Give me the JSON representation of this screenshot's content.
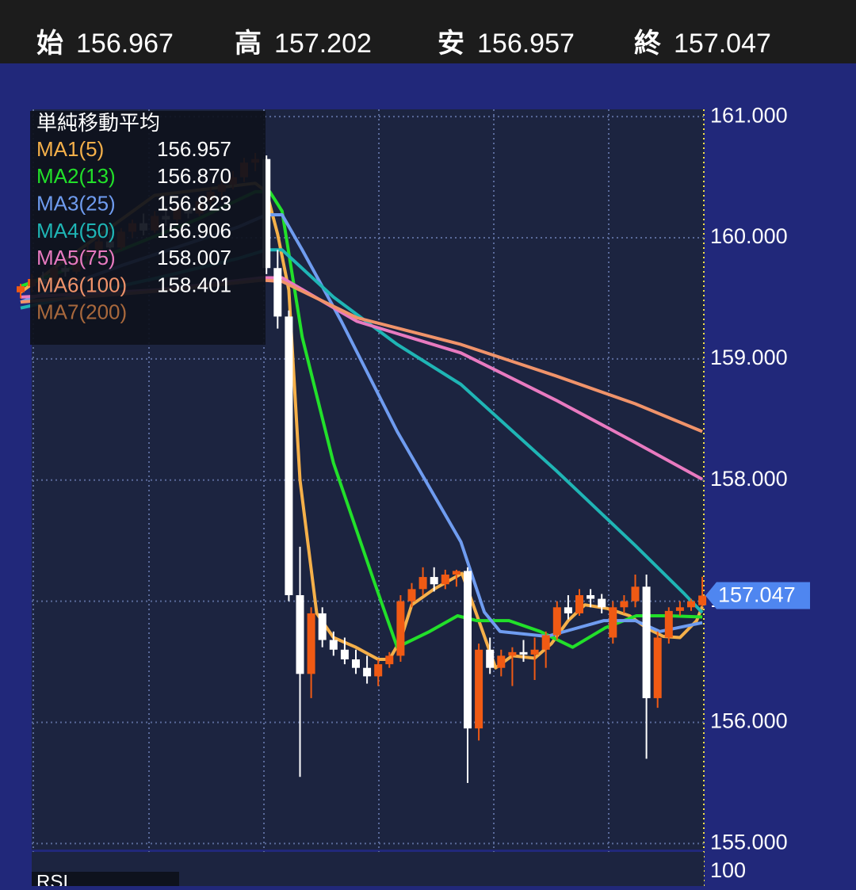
{
  "header": {
    "items": [
      {
        "label": "始",
        "value": "156.967"
      },
      {
        "label": "高",
        "value": "157.202"
      },
      {
        "label": "安",
        "value": "156.957"
      },
      {
        "label": "終",
        "value": "157.047"
      }
    ]
  },
  "chart_data": {
    "type": "candlestick",
    "legend_title": "単純移動平均",
    "ylim": [
      154.95,
      161.06
    ],
    "yticks": [
      {
        "value": 155,
        "label": "155.000"
      },
      {
        "value": 156,
        "label": "156.000"
      },
      {
        "value": 157,
        "label": "157.000"
      },
      {
        "value": 158,
        "label": "158.000"
      },
      {
        "value": 159,
        "label": "159.000"
      },
      {
        "value": 160,
        "label": "160.000"
      },
      {
        "value": 161,
        "label": "161.000"
      }
    ],
    "grid": true,
    "up_color": "#f05a14",
    "down_color": "#ffffff",
    "current_price": {
      "value": 157.047,
      "label": "157.047"
    },
    "open": [
      159.55,
      159.6,
      159.66,
      159.62,
      159.75,
      159.72,
      159.85,
      159.9,
      159.97,
      159.92,
      160.05,
      160.12,
      160.06,
      160.18,
      160.15,
      160.25,
      160.2,
      160.3,
      160.38,
      160.44,
      160.5,
      160.62,
      160.65,
      159.75,
      159.35,
      157.05,
      156.4,
      156.9,
      156.68,
      156.6,
      156.52,
      156.45,
      156.38,
      156.48,
      156.55,
      157.0,
      157.1,
      157.2,
      157.14,
      157.22,
      157.25,
      155.95,
      156.6,
      156.45,
      156.55,
      156.58,
      156.56,
      156.6,
      156.72,
      156.95,
      156.9,
      157.05,
      157.02,
      156.7,
      156.95,
      157.0,
      157.12,
      156.2,
      156.7,
      156.92,
      156.95,
      156.967
    ],
    "high": [
      159.62,
      159.7,
      159.72,
      159.78,
      159.82,
      159.88,
      159.95,
      160.02,
      160.05,
      160.08,
      160.15,
      160.2,
      160.22,
      160.26,
      160.3,
      160.32,
      160.35,
      160.42,
      160.48,
      160.55,
      160.66,
      160.7,
      160.68,
      159.9,
      159.4,
      157.45,
      156.95,
      156.95,
      156.75,
      156.7,
      156.6,
      156.55,
      156.52,
      156.58,
      157.05,
      157.15,
      157.28,
      157.28,
      157.26,
      157.26,
      157.28,
      156.65,
      156.7,
      156.6,
      156.62,
      156.68,
      156.7,
      156.75,
      157.0,
      157.05,
      157.1,
      157.1,
      157.06,
      157.0,
      157.05,
      157.22,
      157.22,
      156.75,
      156.95,
      157.0,
      157.02,
      157.202
    ],
    "low": [
      159.5,
      159.55,
      159.58,
      159.6,
      159.68,
      159.7,
      159.78,
      159.85,
      159.88,
      159.9,
      160.0,
      160.02,
      160.04,
      160.1,
      160.12,
      160.16,
      160.18,
      160.26,
      160.3,
      160.4,
      160.46,
      160.55,
      159.7,
      159.25,
      157.0,
      155.55,
      156.2,
      156.62,
      156.55,
      156.48,
      156.4,
      156.32,
      156.3,
      156.45,
      156.5,
      156.95,
      157.05,
      157.08,
      157.1,
      157.12,
      155.5,
      155.85,
      156.4,
      156.38,
      156.3,
      156.5,
      156.35,
      156.45,
      156.68,
      156.85,
      156.88,
      156.95,
      156.9,
      156.65,
      156.9,
      156.95,
      155.7,
      156.12,
      156.65,
      156.88,
      156.92,
      156.957
    ],
    "close": [
      159.6,
      159.66,
      159.62,
      159.75,
      159.72,
      159.85,
      159.9,
      159.97,
      159.92,
      160.05,
      160.12,
      160.06,
      160.18,
      160.15,
      160.25,
      160.2,
      160.3,
      160.38,
      160.44,
      160.5,
      160.62,
      160.65,
      159.75,
      159.35,
      157.05,
      156.4,
      156.9,
      156.68,
      156.6,
      156.52,
      156.45,
      156.38,
      156.48,
      156.55,
      157.0,
      157.1,
      157.2,
      157.14,
      157.22,
      157.25,
      155.95,
      156.6,
      156.45,
      156.55,
      156.58,
      156.56,
      156.6,
      156.72,
      156.95,
      156.9,
      157.05,
      157.02,
      156.95,
      156.95,
      157.0,
      157.12,
      156.2,
      156.7,
      156.92,
      156.95,
      157.0,
      157.047
    ],
    "series": [
      {
        "name": "MA1(5)",
        "color": "#f5b04a",
        "last_label": "156.957",
        "x": [
          0,
          12,
          21,
          22,
          23,
          24,
          25,
          26.5,
          28,
          30,
          32,
          33,
          34,
          35,
          37,
          39.5,
          41,
          42.5,
          44,
          46,
          47.5,
          49,
          50.5,
          52.5,
          54.5,
          56,
          57.5,
          59,
          60.5,
          61
        ],
        "values": [
          159.55,
          160.35,
          160.45,
          160.38,
          160.03,
          159.57,
          158.0,
          156.9,
          156.7,
          156.62,
          156.52,
          156.52,
          156.68,
          156.97,
          157.1,
          157.23,
          156.84,
          156.45,
          156.55,
          156.53,
          156.65,
          156.84,
          156.97,
          156.94,
          156.88,
          156.78,
          156.71,
          156.7,
          156.84,
          156.957
        ]
      },
      {
        "name": "MA2(13)",
        "color": "#22e02a",
        "last_label": "156.870",
        "x": [
          0,
          9,
          16,
          21,
          22.3,
          23.4,
          25.2,
          28,
          31.6,
          33.7,
          36.6,
          39.1,
          40.8,
          43.7,
          46.5,
          49.4,
          52.3,
          55.1,
          58,
          61
        ],
        "values": [
          159.6,
          159.9,
          160.16,
          160.38,
          160.38,
          160.22,
          159.18,
          158.14,
          157.17,
          156.62,
          156.75,
          156.88,
          156.84,
          156.84,
          156.75,
          156.62,
          156.78,
          156.88,
          156.88,
          156.87
        ]
      },
      {
        "name": "MA3(25)",
        "color": "#6f9cf0",
        "last_label": "156.823",
        "x": [
          0,
          9,
          19.5,
          22,
          23.4,
          25.2,
          28.7,
          33.7,
          39.4,
          41.5,
          42.9,
          47.1,
          52.2,
          55,
          57.2,
          61
        ],
        "values": [
          159.47,
          159.77,
          160.09,
          160.19,
          160.19,
          159.9,
          159.31,
          158.4,
          157.49,
          156.91,
          156.75,
          156.71,
          156.84,
          156.84,
          156.75,
          156.823
        ]
      },
      {
        "name": "MA4(50)",
        "color": "#1fb5b5",
        "last_label": "156.906",
        "x": [
          0,
          12.3,
          19.5,
          22,
          23.4,
          28,
          33.7,
          39.4,
          47.9,
          55,
          59.3,
          61
        ],
        "values": [
          159.42,
          159.67,
          159.83,
          159.9,
          159.9,
          159.51,
          159.12,
          158.79,
          158.08,
          157.46,
          157.07,
          156.906
        ]
      },
      {
        "name": "MA5(75)",
        "color": "#e87ac0",
        "last_label": "158.007",
        "x": [
          0,
          12.3,
          21.6,
          23.4,
          30.1,
          39.4,
          47.9,
          55,
          61
        ],
        "values": [
          159.51,
          159.57,
          159.67,
          159.67,
          159.31,
          159.05,
          158.66,
          158.31,
          158.007
        ]
      },
      {
        "name": "MA6(100)",
        "color": "#f0936a",
        "last_label": "158.401",
        "x": [
          0,
          12.3,
          21.6,
          23.4,
          30.1,
          39.4,
          47.9,
          55,
          61
        ],
        "values": [
          159.47,
          159.56,
          159.65,
          159.64,
          159.34,
          159.12,
          158.86,
          158.63,
          158.401
        ]
      },
      {
        "name": "MA7(200)",
        "color": "#a8683c"
      }
    ]
  },
  "rsi": {
    "title": "RSI",
    "tick": "100"
  }
}
